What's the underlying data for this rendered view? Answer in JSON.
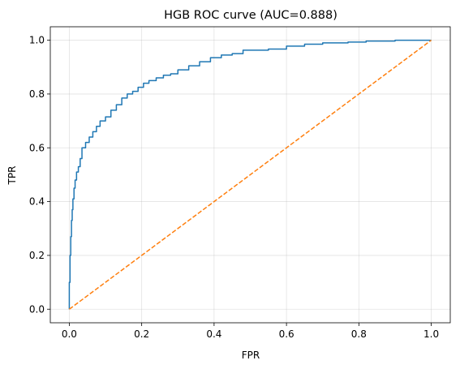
{
  "chart_data": {
    "type": "line",
    "title": "HGB ROC curve (AUC=0.888)",
    "xlabel": "FPR",
    "ylabel": "TPR",
    "xlim": [
      -0.0525,
      1.0525
    ],
    "ylim": [
      -0.0505,
      1.05
    ],
    "xticks": [
      0.0,
      0.2,
      0.4,
      0.6,
      0.8,
      1.0
    ],
    "yticks": [
      0.0,
      0.2,
      0.4,
      0.6,
      0.8,
      1.0
    ],
    "xtick_labels": [
      "0.0",
      "0.2",
      "0.4",
      "0.6",
      "0.8",
      "1.0"
    ],
    "ytick_labels": [
      "0.0",
      "0.2",
      "0.4",
      "0.6",
      "0.8",
      "1.0"
    ],
    "grid": true,
    "series": [
      {
        "color": "#1f77b4",
        "style": "solid",
        "x": [
          0.0,
          0.0,
          0.002,
          0.002,
          0.004,
          0.004,
          0.006,
          0.006,
          0.008,
          0.008,
          0.01,
          0.01,
          0.013,
          0.013,
          0.016,
          0.016,
          0.02,
          0.02,
          0.025,
          0.025,
          0.03,
          0.03,
          0.035,
          0.035,
          0.045,
          0.045,
          0.055,
          0.055,
          0.065,
          0.065,
          0.075,
          0.075,
          0.085,
          0.085,
          0.1,
          0.1,
          0.115,
          0.115,
          0.13,
          0.13,
          0.145,
          0.145,
          0.16,
          0.16,
          0.175,
          0.175,
          0.19,
          0.19,
          0.205,
          0.205,
          0.22,
          0.22,
          0.24,
          0.24,
          0.26,
          0.26,
          0.28,
          0.28,
          0.3,
          0.3,
          0.33,
          0.33,
          0.36,
          0.36,
          0.39,
          0.39,
          0.42,
          0.42,
          0.45,
          0.45,
          0.48,
          0.48,
          0.55,
          0.55,
          0.6,
          0.6,
          0.65,
          0.65,
          0.7,
          0.7,
          0.77,
          0.77,
          0.82,
          0.82,
          0.9,
          0.9,
          1.0
        ],
        "y": [
          0.0,
          0.1,
          0.1,
          0.2,
          0.2,
          0.27,
          0.27,
          0.33,
          0.33,
          0.37,
          0.37,
          0.41,
          0.41,
          0.45,
          0.45,
          0.48,
          0.48,
          0.51,
          0.51,
          0.53,
          0.53,
          0.56,
          0.56,
          0.6,
          0.6,
          0.62,
          0.62,
          0.64,
          0.64,
          0.66,
          0.66,
          0.68,
          0.68,
          0.7,
          0.7,
          0.715,
          0.715,
          0.74,
          0.74,
          0.76,
          0.76,
          0.785,
          0.785,
          0.8,
          0.8,
          0.81,
          0.81,
          0.825,
          0.825,
          0.84,
          0.84,
          0.85,
          0.85,
          0.86,
          0.86,
          0.87,
          0.87,
          0.875,
          0.875,
          0.89,
          0.89,
          0.905,
          0.905,
          0.92,
          0.92,
          0.935,
          0.935,
          0.945,
          0.945,
          0.95,
          0.95,
          0.963,
          0.963,
          0.967,
          0.967,
          0.978,
          0.978,
          0.985,
          0.985,
          0.99,
          0.99,
          0.993,
          0.993,
          0.997,
          0.997,
          1.0,
          1.0
        ]
      },
      {
        "color": "#ff7f0e",
        "style": "dashed",
        "x": [
          0.0,
          1.0
        ],
        "y": [
          0.0,
          1.0
        ]
      }
    ]
  }
}
